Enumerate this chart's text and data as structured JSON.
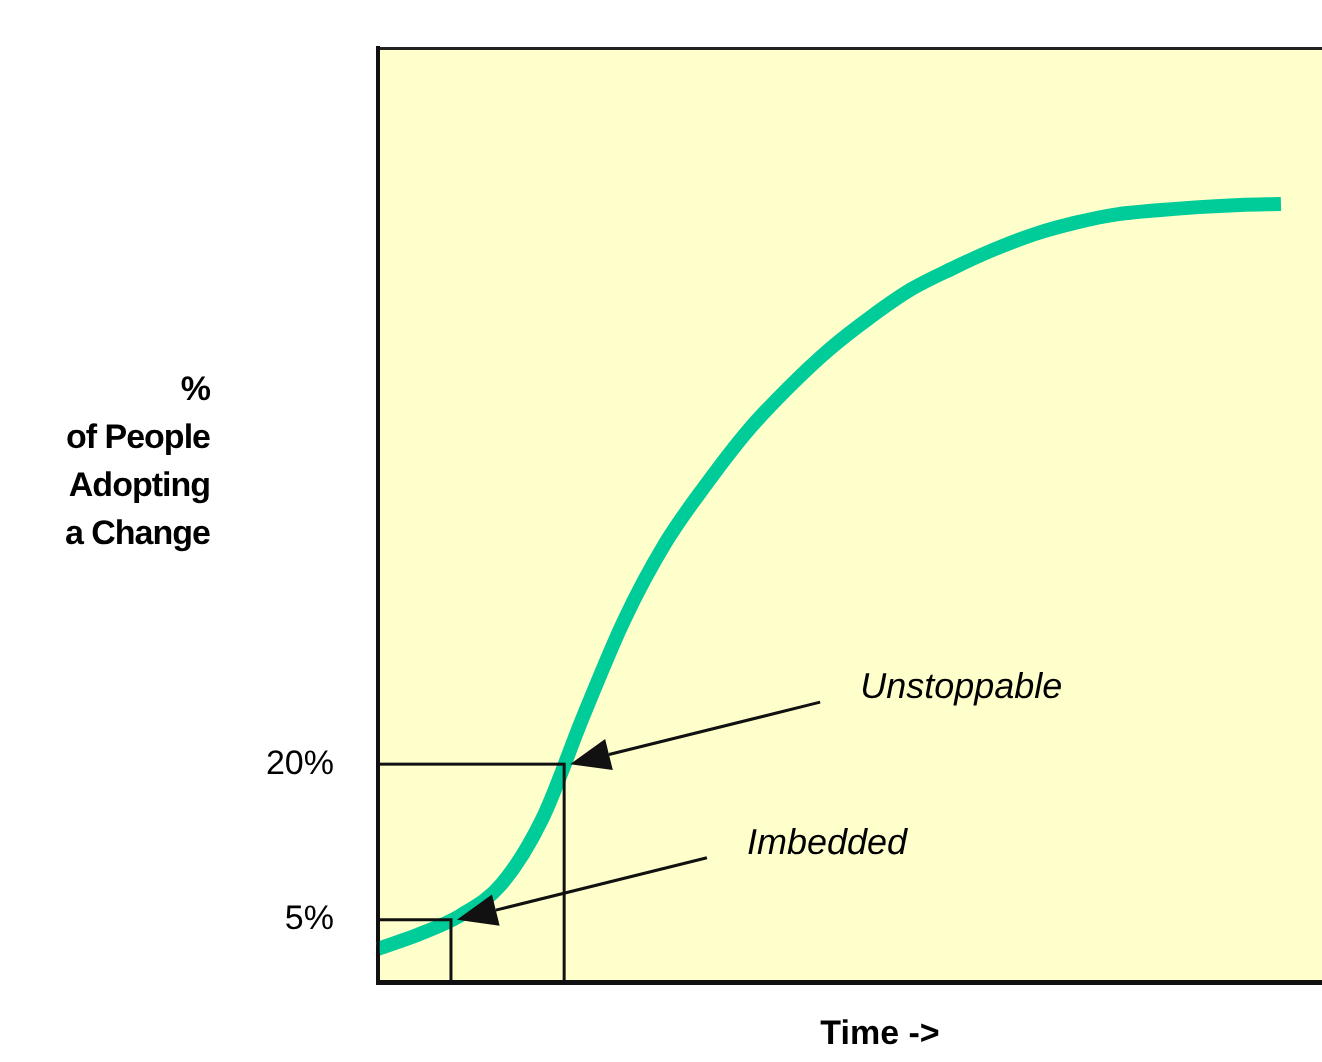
{
  "chart_data": {
    "type": "line",
    "xlabel": "Time ->",
    "ylabel": "%\nof People\nAdopting\na Change",
    "categories": [
      null,
      null,
      null,
      null,
      null,
      null,
      null,
      null,
      null,
      null,
      null,
      null,
      null,
      null,
      null,
      null,
      null,
      null,
      null,
      null,
      null,
      null,
      null,
      null
    ],
    "series": [
      {
        "color": "#00cc99",
        "values": [
          2.2,
          3.6,
          5.4,
          8.4,
          14.7,
          24.6,
          33.9,
          41.3,
          47,
          52.1,
          56.3,
          60,
          63.1,
          65.8,
          67.8,
          69.6,
          71.1,
          72.2,
          73,
          73.4,
          73.7,
          73.9,
          74,
          null
        ]
      }
    ],
    "ylim": [
      -1,
      89
    ],
    "yticks": [
      {
        "value": 20,
        "label": "20%"
      },
      {
        "value": 5,
        "label": "5%"
      }
    ],
    "annotations": [
      "Unstoppable",
      "Imbedded"
    ]
  }
}
